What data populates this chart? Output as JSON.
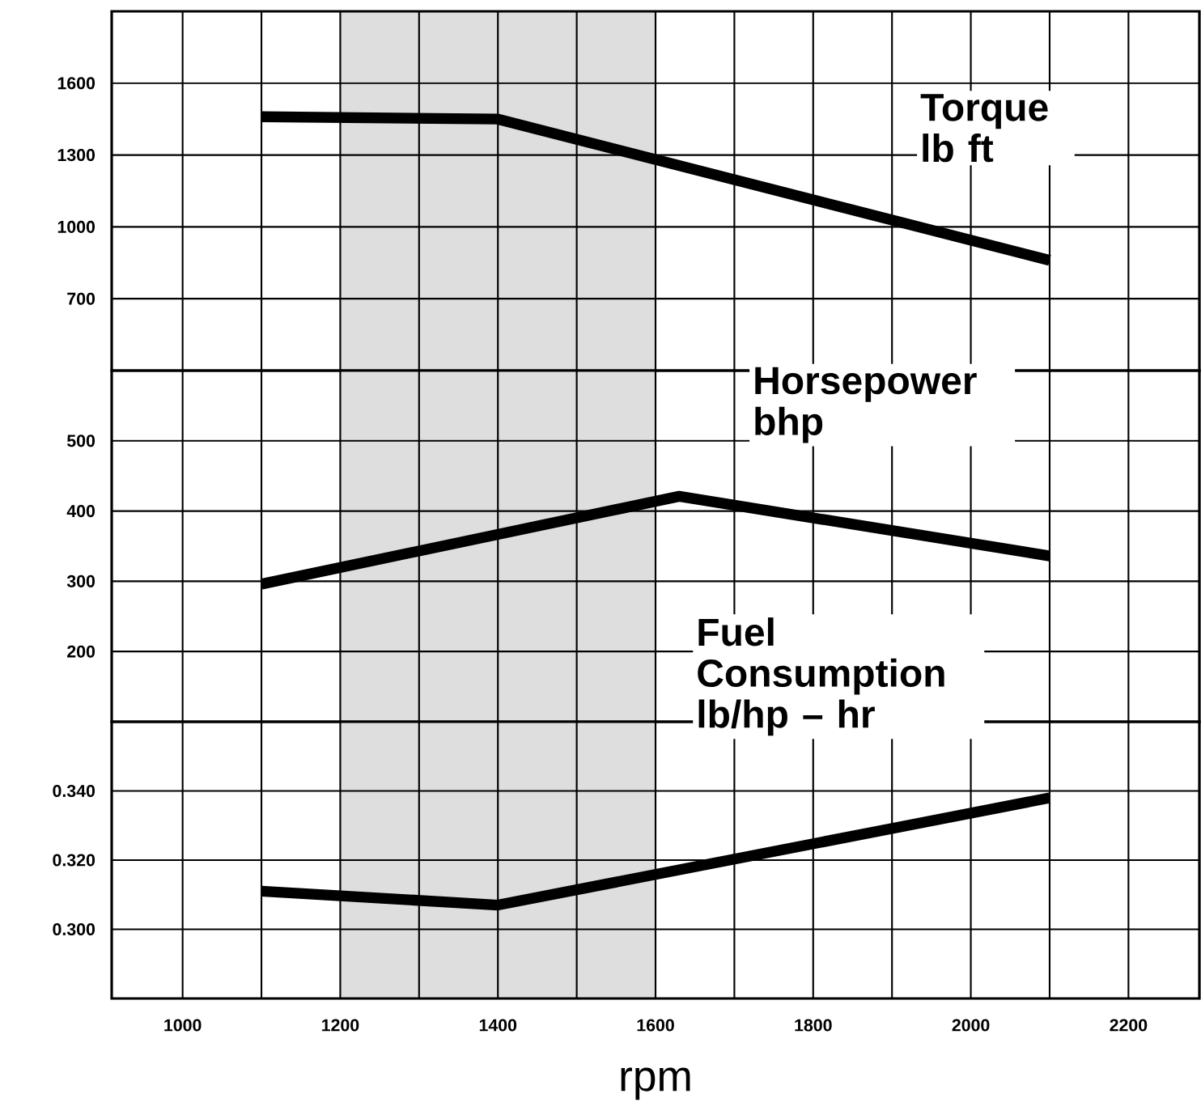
{
  "chart_data": [
    {
      "type": "line",
      "xlim": [
        910,
        2290
      ],
      "ylim": [
        400,
        1900
      ],
      "xticks": [
        {
          "value": 1000,
          "label": null
        },
        {
          "value": 1100,
          "label": null
        },
        {
          "value": 1200,
          "label": null
        },
        {
          "value": 1300,
          "label": null
        },
        {
          "value": 1400,
          "label": null
        },
        {
          "value": 1500,
          "label": null
        },
        {
          "value": 1600,
          "label": null
        },
        {
          "value": 1700,
          "label": null
        },
        {
          "value": 1800,
          "label": null
        },
        {
          "value": 1900,
          "label": null
        },
        {
          "value": 2000,
          "label": null
        },
        {
          "value": 2100,
          "label": null
        },
        {
          "value": 2200,
          "label": null
        }
      ],
      "yticks": [
        700,
        1000,
        1300,
        1600
      ],
      "tick_labels": "y",
      "grid": true,
      "legend": false,
      "marker": "none",
      "line_style": "solid",
      "bands": [
        {
          "axis": "x",
          "from": 1200,
          "to": 1600,
          "color": "#dedede"
        }
      ],
      "series": [
        {
          "name": "Torque lb ft",
          "color": "#000000",
          "x": [
            1100,
            1400,
            2100
          ],
          "values": [
            1460,
            1450,
            860
          ]
        }
      ]
    },
    {
      "type": "line",
      "xlim": [
        910,
        2290
      ],
      "ylim": [
        100,
        600
      ],
      "xticks": [
        {
          "value": 1000,
          "label": null
        },
        {
          "value": 1100,
          "label": null
        },
        {
          "value": 1200,
          "label": null
        },
        {
          "value": 1300,
          "label": null
        },
        {
          "value": 1400,
          "label": null
        },
        {
          "value": 1500,
          "label": null
        },
        {
          "value": 1600,
          "label": null
        },
        {
          "value": 1700,
          "label": null
        },
        {
          "value": 1800,
          "label": null
        },
        {
          "value": 1900,
          "label": null
        },
        {
          "value": 2000,
          "label": null
        },
        {
          "value": 2100,
          "label": null
        },
        {
          "value": 2200,
          "label": null
        }
      ],
      "yticks": [
        200,
        300,
        400,
        500
      ],
      "tick_labels": "y",
      "grid": true,
      "legend": false,
      "marker": "none",
      "line_style": "solid",
      "bands": [
        {
          "axis": "x",
          "from": 1200,
          "to": 1600,
          "color": "#dedede"
        }
      ],
      "series": [
        {
          "name": "Horsepower bhp",
          "color": "#000000",
          "x": [
            1100,
            1630,
            2100
          ],
          "values": [
            296,
            421,
            336
          ]
        }
      ]
    },
    {
      "type": "line",
      "xlabel": "rpm",
      "xlim": [
        910,
        2290
      ],
      "ylim": [
        0.28,
        0.36
      ],
      "xticks": [
        {
          "value": 1000,
          "label": "1000"
        },
        {
          "value": 1100,
          "label": null
        },
        {
          "value": 1200,
          "label": "1200"
        },
        {
          "value": 1300,
          "label": null
        },
        {
          "value": 1400,
          "label": "1400"
        },
        {
          "value": 1500,
          "label": null
        },
        {
          "value": 1600,
          "label": "1600"
        },
        {
          "value": 1700,
          "label": null
        },
        {
          "value": 1800,
          "label": "1800"
        },
        {
          "value": 1900,
          "label": null
        },
        {
          "value": 2000,
          "label": "2000"
        },
        {
          "value": 2100,
          "label": null
        },
        {
          "value": 2200,
          "label": "2200"
        }
      ],
      "yticks": [
        {
          "value": 0.3,
          "label": "0.300"
        },
        {
          "value": 0.32,
          "label": "0.320"
        },
        {
          "value": 0.34,
          "label": "0.340"
        }
      ],
      "grid": true,
      "legend": false,
      "marker": "none",
      "line_style": "solid",
      "bands": [
        {
          "axis": "x",
          "from": 1200,
          "to": 1600,
          "color": "#dedede"
        }
      ],
      "series": [
        {
          "name": "Fuel Consumption lb/hp – hr",
          "color": "#000000",
          "x": [
            1100,
            1400,
            2100
          ],
          "values": [
            0.311,
            0.307,
            0.338
          ]
        }
      ]
    }
  ]
}
